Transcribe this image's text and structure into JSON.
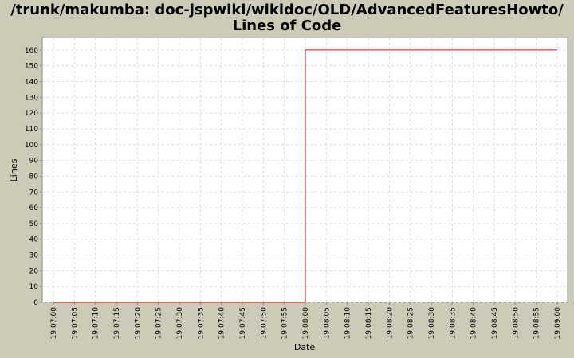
{
  "chart_data": {
    "type": "line",
    "title": "/trunk/makumba: doc-jspwiki/wikidoc/OLD/AdvancedFeaturesHowto/",
    "subtitle": "Lines of Code",
    "xlabel": "Date",
    "ylabel": "Lines",
    "x_ticks": [
      "19:07:00",
      "19:07:05",
      "19:07:10",
      "19:07:15",
      "19:07:20",
      "19:07:25",
      "19:07:30",
      "19:07:35",
      "19:07:40",
      "19:07:45",
      "19:07:50",
      "19:07:55",
      "19:08:00",
      "19:08:05",
      "19:08:10",
      "19:08:15",
      "19:08:20",
      "19:08:25",
      "19:08:30",
      "19:08:35",
      "19:08:40",
      "19:08:45",
      "19:08:50",
      "19:08:55",
      "19:09:00"
    ],
    "y_ticks": [
      0,
      10,
      20,
      30,
      40,
      50,
      60,
      70,
      80,
      90,
      100,
      110,
      120,
      130,
      140,
      150,
      160
    ],
    "ylim": [
      0,
      168
    ],
    "grid": true,
    "series": [
      {
        "color": "#ff0000",
        "step": true,
        "points": [
          [
            "19:07:00",
            0
          ],
          [
            "19:08:00",
            0
          ],
          [
            "19:08:00",
            160
          ],
          [
            "19:09:00",
            160
          ]
        ]
      }
    ]
  }
}
